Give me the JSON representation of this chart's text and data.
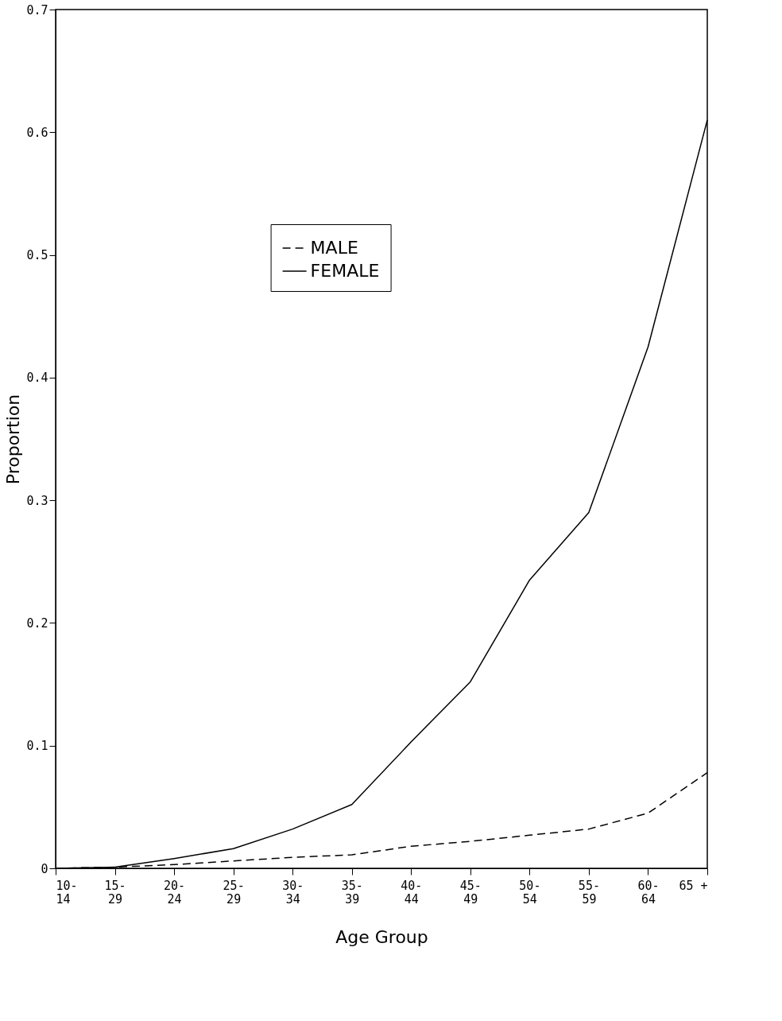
{
  "chart_data": {
    "type": "line",
    "xlabel": "Age Group",
    "ylabel": "Proportion",
    "categories": [
      "10-\n14",
      "15-\n29",
      "20-\n24",
      "25-\n29",
      "30-\n34",
      "35-\n39",
      "40-\n44",
      "45-\n49",
      "50-\n54",
      "55-\n59",
      "60-\n64",
      "65 +"
    ],
    "series": [
      {
        "name": "MALE",
        "color": "#000000",
        "line_style": "dashed",
        "values": [
          0,
          0.001,
          0.003,
          0.006,
          0.009,
          0.011,
          0.018,
          0.022,
          0.027,
          0.032,
          0.045,
          0.078
        ]
      },
      {
        "name": "FEMALE",
        "color": "#000000",
        "line_style": "solid",
        "values": [
          0,
          0.001,
          0.008,
          0.016,
          0.032,
          0.052,
          0.103,
          0.152,
          0.235,
          0.29,
          0.425,
          0.61
        ]
      }
    ],
    "ylim": [
      0,
      0.7
    ],
    "yticks": [
      0,
      0.1,
      0.2,
      0.3,
      0.4,
      0.5,
      0.6,
      0.7
    ],
    "grid": false,
    "legend": "top",
    "marker": "none"
  }
}
